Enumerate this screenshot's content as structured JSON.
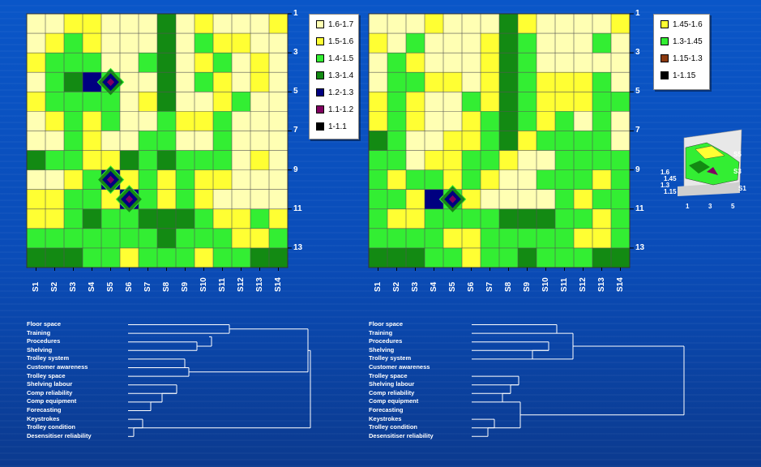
{
  "colors": {
    "c17": "#ffffb3",
    "c16": "#ffff33",
    "c15": "#33ee33",
    "c14": "#138a13",
    "c13": "#000080",
    "c12": "#800060",
    "c11": "#000000",
    "grid": "#555555",
    "background": "#0a56c8"
  },
  "chart_data": [
    {
      "type": "heatmap",
      "panel": "left",
      "x_tick_labels": [
        "S1",
        "S2",
        "S3",
        "S4",
        "S5",
        "S6",
        "S7",
        "S8",
        "S9",
        "S10",
        "S11",
        "S12",
        "S13",
        "S14"
      ],
      "y_tick_labels": [
        "1",
        "3",
        "5",
        "7",
        "9",
        "11",
        "13"
      ],
      "legend": [
        {
          "label": "1.6-1.7",
          "color": "#ffffb3"
        },
        {
          "label": "1.5-1.6",
          "color": "#ffff33"
        },
        {
          "label": "1.4-1.5",
          "color": "#33ee33"
        },
        {
          "label": "1.3-1.4",
          "color": "#138a13"
        },
        {
          "label": "1.2-1.3",
          "color": "#000080"
        },
        {
          "label": "1.1-1.2",
          "color": "#800060"
        },
        {
          "label": "1-1.1",
          "color": "#000000"
        }
      ]
    },
    {
      "type": "heatmap",
      "panel": "right",
      "x_tick_labels": [
        "S1",
        "S2",
        "S3",
        "S4",
        "S5",
        "S6",
        "S7",
        "S8",
        "S9",
        "S10",
        "S11",
        "S12",
        "S13",
        "S14"
      ],
      "y_tick_labels": [
        "1",
        "3",
        "5",
        "7",
        "9",
        "11",
        "13"
      ],
      "legend": [
        {
          "label": "1.45-1.6",
          "color": "#ffff33"
        },
        {
          "label": "1.3-1.45",
          "color": "#33ee33"
        },
        {
          "label": "1.15-1.3",
          "color": "#8b3a10"
        },
        {
          "label": "1-1.15",
          "color": "#000000"
        }
      ],
      "inset": {
        "z_tick_labels": [
          "1.6",
          "1.45",
          "1.3",
          "1.15"
        ],
        "x_tick_labels": [
          "1",
          "3",
          "5"
        ],
        "series_labels": [
          "S5",
          "S3",
          "S1"
        ]
      }
    },
    {
      "type": "dendrogram",
      "panel": "bottom-left",
      "labels": [
        "Floor space",
        "Training",
        "Procedures",
        "Shelving",
        "Trolley system",
        "Customer awareness",
        "Trolley space",
        "Shelving labour",
        "Comp reliability",
        "Comp equipment",
        "Forecasting",
        "Keystrokes",
        "Trolley condition",
        "Desensitiser reliability"
      ]
    },
    {
      "type": "dendrogram",
      "panel": "bottom-right",
      "labels": [
        "Floor space",
        "Training",
        "Procedures",
        "Shelving",
        "Trolley system",
        "Customer awareness",
        "Trolley space",
        "Shelving labour",
        "Comp reliability",
        "Comp equipment",
        "Forecasting",
        "Keystrokes",
        "Trolley condition",
        "Desensitiser reliability"
      ]
    }
  ]
}
